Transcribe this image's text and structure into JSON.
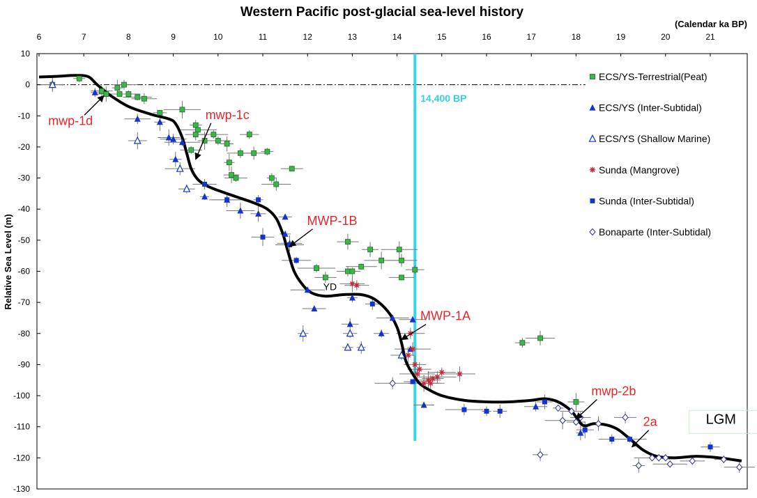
{
  "chart_data": {
    "type": "scatter",
    "title": "Western Pacific post-glacial  sea-level history",
    "xlabel": "(Calendar ka BP)",
    "ylabel": "Relative Sea Level (m)",
    "xlim": [
      6,
      22
    ],
    "ylim": [
      -130,
      10
    ],
    "x_ticks": [
      "6",
      "7",
      "8",
      "9",
      "10",
      "11",
      "12",
      "13",
      "14",
      "15",
      "16",
      "17",
      "18",
      "19",
      "20",
      "21"
    ],
    "y_ticks": [
      "10",
      "0",
      "-10",
      "-20",
      "-30",
      "-40",
      "-50",
      "-60",
      "-70",
      "-80",
      "-90",
      "-100",
      "-110",
      "-120",
      "-130"
    ],
    "grid": false,
    "legend_position": "right",
    "colors": {
      "terrestrial": "#3cb54a",
      "intersubtidal": "#1432d2",
      "mangrove": "#c8283c",
      "curve": "#000000",
      "marker_line": "#33d8e8",
      "annotation": "#e8262a",
      "errorbar": "#777777"
    },
    "series": [
      {
        "name": "ECS/YS-Terrestrial(Peat)",
        "marker": "square-green",
        "points": [
          [
            6.3,
            0
          ],
          [
            6.9,
            2
          ],
          [
            7.4,
            -2
          ],
          [
            7.75,
            -1
          ],
          [
            7.9,
            0
          ],
          [
            7.5,
            -3
          ],
          [
            7.8,
            -3
          ],
          [
            8.0,
            -3
          ],
          [
            8.2,
            -4
          ],
          [
            8.35,
            -4.5
          ],
          [
            8.7,
            -9
          ],
          [
            9.2,
            -8
          ],
          [
            9.5,
            -13
          ],
          [
            9.55,
            -14.5
          ],
          [
            9.5,
            -16
          ],
          [
            9.9,
            -16
          ],
          [
            9.7,
            -18
          ],
          [
            9.4,
            -21
          ],
          [
            10.0,
            -18
          ],
          [
            10.2,
            -19
          ],
          [
            10.7,
            -16
          ],
          [
            10.25,
            -25
          ],
          [
            10.3,
            -29
          ],
          [
            10.4,
            -30
          ],
          [
            10.5,
            -22
          ],
          [
            10.8,
            -22
          ],
          [
            11.1,
            -21.5
          ],
          [
            11.65,
            -27
          ],
          [
            11.2,
            -30
          ],
          [
            11.3,
            -32
          ],
          [
            12.2,
            -59
          ],
          [
            12.4,
            -62
          ],
          [
            12.9,
            -50.5
          ],
          [
            12.9,
            -60
          ],
          [
            13.0,
            -60
          ],
          [
            13.2,
            -58.5
          ],
          [
            13.4,
            -53
          ],
          [
            13.65,
            -56.5
          ],
          [
            14.05,
            -53
          ],
          [
            14.1,
            -56.5
          ],
          [
            14.1,
            -62
          ],
          [
            14.4,
            -59.5
          ],
          [
            16.8,
            -83
          ],
          [
            17.2,
            -81.5
          ],
          [
            18.0,
            -102
          ]
        ]
      },
      {
        "name": "ECS/YS (Inter-Subtidal)",
        "marker": "triangle-filled-blue",
        "points": [
          [
            7.25,
            -2.5
          ],
          [
            8.2,
            -11
          ],
          [
            8.7,
            -12
          ],
          [
            8.9,
            -17
          ],
          [
            9.0,
            -17.5
          ],
          [
            9.05,
            -24
          ],
          [
            9.2,
            -18.5
          ],
          [
            9.7,
            -36
          ],
          [
            10.2,
            -37
          ],
          [
            10.5,
            -40.5
          ],
          [
            10.9,
            -41.5
          ],
          [
            11.5,
            -42.5
          ],
          [
            11.5,
            -48
          ],
          [
            11.6,
            -51
          ],
          [
            12.0,
            -66
          ],
          [
            12.15,
            -72
          ],
          [
            12.95,
            -77
          ],
          [
            13.0,
            -68.5
          ],
          [
            13.65,
            -80
          ],
          [
            13.9,
            -75
          ],
          [
            14.3,
            -85
          ],
          [
            14.35,
            -75.5
          ],
          [
            14.6,
            -103
          ],
          [
            17.1,
            -103.5
          ],
          [
            18.1,
            -112
          ]
        ]
      },
      {
        "name": "ECS/YS (Shallow Marine)",
        "marker": "triangle-open-blue",
        "points": [
          [
            6.3,
            0
          ],
          [
            8.2,
            -18
          ],
          [
            9.15,
            -27
          ],
          [
            9.3,
            -33.5
          ],
          [
            11.9,
            -80
          ],
          [
            12.9,
            -84.5
          ],
          [
            12.95,
            -80
          ],
          [
            13.2,
            -84.5
          ],
          [
            14.1,
            -87
          ]
        ]
      },
      {
        "name": "Sunda (Mangrove)",
        "marker": "star-red",
        "points": [
          [
            13.0,
            -64
          ],
          [
            13.1,
            -64.5
          ],
          [
            14.25,
            -87
          ],
          [
            14.3,
            -80
          ],
          [
            14.35,
            -85
          ],
          [
            14.4,
            -90
          ],
          [
            14.45,
            -93
          ],
          [
            14.5,
            -91.5
          ],
          [
            14.6,
            -96
          ],
          [
            14.7,
            -95
          ],
          [
            14.75,
            -96
          ],
          [
            14.8,
            -94.5
          ],
          [
            14.9,
            -94
          ],
          [
            15.0,
            -92.5
          ],
          [
            15.4,
            -93
          ]
        ]
      },
      {
        "name": "Sunda (Inter-Subtidal)",
        "marker": "square-filled-blue",
        "points": [
          [
            9.7,
            -32
          ],
          [
            10.2,
            -37
          ],
          [
            10.9,
            -37
          ],
          [
            11.0,
            -49
          ],
          [
            11.6,
            -51.5
          ],
          [
            11.75,
            -56.5
          ],
          [
            13.45,
            -70.5
          ],
          [
            14.35,
            -95.5
          ],
          [
            15.5,
            -104.5
          ],
          [
            16.0,
            -105
          ],
          [
            16.3,
            -105
          ],
          [
            17.3,
            -102
          ],
          [
            18.2,
            -111
          ],
          [
            18.8,
            -114
          ],
          [
            19.2,
            -114
          ],
          [
            21.0,
            -116.5
          ]
        ]
      },
      {
        "name": "Bonaparte (Inter-Subtidal)",
        "marker": "diamond-open-blue",
        "points": [
          [
            13.9,
            -96
          ],
          [
            17.6,
            -104
          ],
          [
            17.9,
            -105
          ],
          [
            18.1,
            -107
          ],
          [
            18.0,
            -108.5
          ],
          [
            18.5,
            -109
          ],
          [
            19.1,
            -107
          ],
          [
            19.7,
            -120
          ],
          [
            19.85,
            -120
          ],
          [
            20.0,
            -120
          ],
          [
            19.4,
            -122.5
          ],
          [
            20.1,
            -122
          ],
          [
            20.6,
            -121
          ],
          [
            21.3,
            -120.5
          ],
          [
            21.65,
            -123
          ],
          [
            17.2,
            -119
          ],
          [
            17.7,
            -108
          ]
        ]
      }
    ],
    "curve": {
      "name": "Sea-level curve",
      "points": [
        [
          6.0,
          2.5
        ],
        [
          6.4,
          2.7
        ],
        [
          6.8,
          3
        ],
        [
          7.1,
          2.6
        ],
        [
          7.3,
          0
        ],
        [
          7.6,
          -3.5
        ],
        [
          8.0,
          -7
        ],
        [
          8.5,
          -9.5
        ],
        [
          8.9,
          -11
        ],
        [
          9.05,
          -12.5
        ],
        [
          9.2,
          -17
        ],
        [
          9.3,
          -22
        ],
        [
          9.4,
          -27
        ],
        [
          9.55,
          -30.5
        ],
        [
          9.75,
          -32.5
        ],
        [
          10.0,
          -34
        ],
        [
          10.4,
          -36
        ],
        [
          10.8,
          -38
        ],
        [
          11.1,
          -40
        ],
        [
          11.3,
          -43
        ],
        [
          11.45,
          -48
        ],
        [
          11.55,
          -53
        ],
        [
          11.7,
          -60
        ],
        [
          11.9,
          -64.5
        ],
        [
          12.1,
          -67
        ],
        [
          12.4,
          -68
        ],
        [
          12.8,
          -67.5
        ],
        [
          13.2,
          -67.5
        ],
        [
          13.5,
          -69
        ],
        [
          13.8,
          -73
        ],
        [
          14.0,
          -78
        ],
        [
          14.1,
          -83
        ],
        [
          14.2,
          -89
        ],
        [
          14.35,
          -93
        ],
        [
          14.5,
          -96
        ],
        [
          14.7,
          -98
        ],
        [
          15.0,
          -100
        ],
        [
          15.5,
          -101.5
        ],
        [
          16.0,
          -102
        ],
        [
          16.5,
          -102
        ],
        [
          17.0,
          -101.5
        ],
        [
          17.3,
          -101
        ],
        [
          17.6,
          -102
        ],
        [
          17.9,
          -105
        ],
        [
          18.15,
          -109.5
        ],
        [
          18.4,
          -109
        ],
        [
          18.7,
          -109.5
        ],
        [
          18.95,
          -111
        ],
        [
          19.25,
          -114.5
        ],
        [
          19.5,
          -117.5
        ],
        [
          19.8,
          -119.5
        ],
        [
          20.2,
          -120
        ],
        [
          20.7,
          -119.5
        ],
        [
          21.2,
          -120
        ],
        [
          21.7,
          -121
        ]
      ]
    },
    "reference_lines": [
      {
        "axis": "y",
        "value": 0,
        "style": "dash-dot"
      },
      {
        "axis": "x",
        "value": 14.4,
        "color": "cyan",
        "label": "14,400 BP"
      }
    ],
    "annotations": [
      {
        "text": "mwp-1d",
        "x": 7.45,
        "y": -3.5
      },
      {
        "text": "mwp-1c",
        "x": 9.5,
        "y": -24
      },
      {
        "text": "MWP-1B",
        "x": 11.6,
        "y": -52
      },
      {
        "text": "MWP-1A",
        "x": 14.1,
        "y": -82
      },
      {
        "text": "YD",
        "x": 12.35,
        "y": -66
      },
      {
        "text": "mwp-2b",
        "x": 18.0,
        "y": -107.5
      },
      {
        "text": "2a",
        "x": 19.25,
        "y": -116.5
      },
      {
        "text": "LGM",
        "x": 20.9,
        "y": -109
      }
    ]
  }
}
